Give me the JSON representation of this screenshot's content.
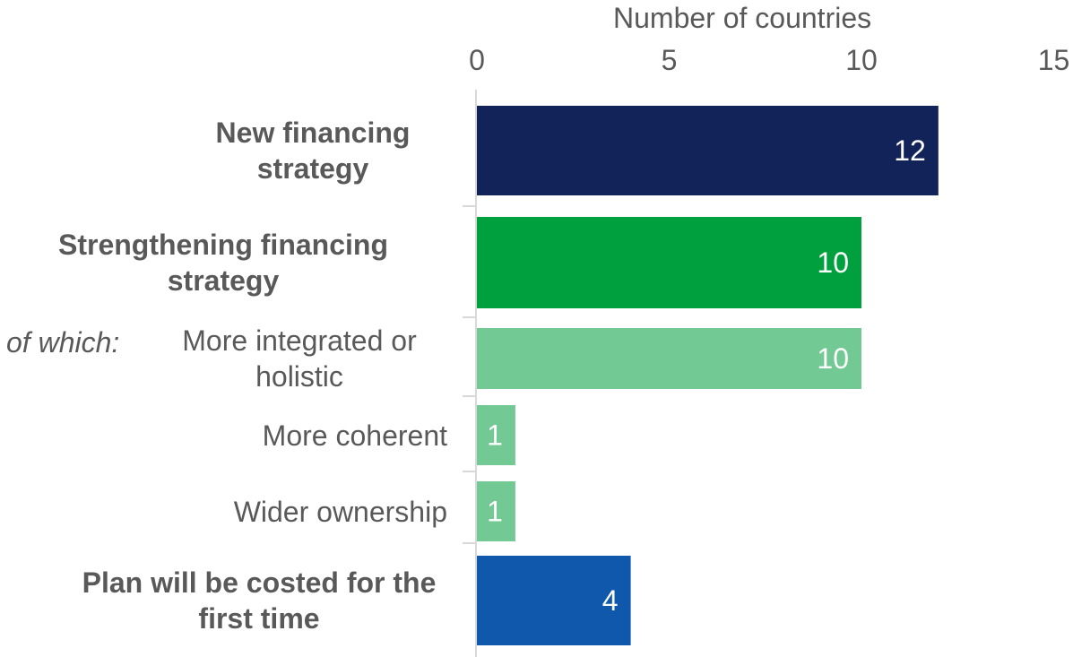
{
  "chart_data": {
    "type": "bar",
    "orientation": "horizontal",
    "xlabel": "Number of countries",
    "xlim": [
      0,
      15
    ],
    "xticks": [
      0,
      5,
      10,
      15
    ],
    "x_axis_position": "top",
    "grid": false,
    "legend": "none",
    "categories": [
      "New financing strategy",
      "Strengthening financing strategy",
      "More integrated or holistic",
      "More coherent",
      "Wider ownership",
      "Plan will be costed for the first time"
    ],
    "category_prefix": "of which:",
    "bold_categories": [
      true,
      true,
      false,
      false,
      false,
      true
    ],
    "values": [
      12,
      10,
      10,
      1,
      1,
      4
    ],
    "data_labels": [
      "12",
      "10",
      "10",
      "1",
      "1",
      "4"
    ],
    "colors": [
      "#12235A",
      "#00A03E",
      "#72C994",
      "#72C994",
      "#72C994",
      "#0F58AC"
    ]
  }
}
